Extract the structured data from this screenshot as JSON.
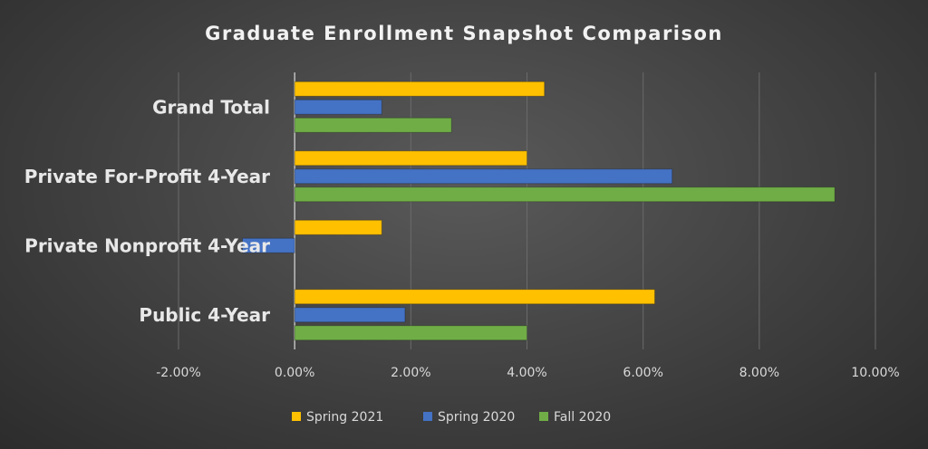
{
  "chart_data": {
    "type": "bar",
    "orientation": "horizontal",
    "title": "Graduate Enrollment Snapshot Comparison",
    "categories": [
      "Grand Total",
      "Private For-Profit 4-Year",
      "Private Nonprofit 4-Year",
      "Public 4-Year"
    ],
    "series": [
      {
        "name": "Spring 2021",
        "color": "#ffc000",
        "values": [
          4.3,
          4.0,
          1.5,
          6.2
        ]
      },
      {
        "name": "Spring 2020",
        "color": "#4472c4",
        "values": [
          1.5,
          6.5,
          -0.9,
          1.9
        ]
      },
      {
        "name": "Fall 2020",
        "color": "#70ad47",
        "values": [
          2.7,
          9.3,
          0.0,
          4.0
        ]
      }
    ],
    "xlim": [
      -2,
      10
    ],
    "x_ticks": [
      "-2.00%",
      "0.00%",
      "2.00%",
      "4.00%",
      "6.00%",
      "8.00%",
      "10.00%"
    ],
    "x_tick_values": [
      -2,
      0,
      2,
      4,
      6,
      8,
      10
    ],
    "unit": "%",
    "grid": "vertical",
    "legend": "bottom"
  }
}
